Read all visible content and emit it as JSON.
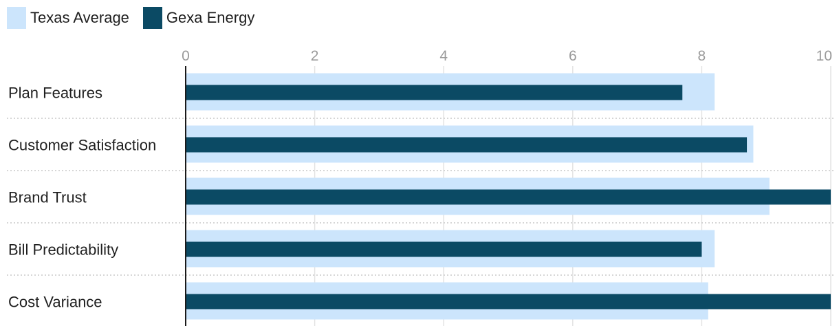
{
  "legend": {
    "items": [
      {
        "label": "Texas Average",
        "color": "#cce5fc"
      },
      {
        "label": "Gexa Energy",
        "color": "#0b4a64"
      }
    ]
  },
  "chart_data": {
    "type": "bar",
    "orientation": "horizontal",
    "categories": [
      "Plan Features",
      "Customer Satisfaction",
      "Brand Trust",
      "Bill Predictability",
      "Cost Variance"
    ],
    "series": [
      {
        "name": "Texas Average",
        "values": [
          8.2,
          8.8,
          9.05,
          8.2,
          8.1
        ],
        "color": "#cce5fc"
      },
      {
        "name": "Gexa Energy",
        "values": [
          7.7,
          8.7,
          10,
          8.0,
          10
        ],
        "color": "#0b4a64"
      }
    ],
    "xlim": [
      0,
      10
    ],
    "xticks": [
      "0",
      "2",
      "4",
      "6",
      "8",
      "10"
    ],
    "x_axis_position": "top",
    "grid": true,
    "legend_position": "top-left"
  },
  "colors": {
    "grid": "#e3e3e3",
    "row_divider": "#c8c8c8",
    "axis_line": "#1a1a1a",
    "tick_label": "#9a9a9a",
    "category_label": "#1f1f1f"
  }
}
